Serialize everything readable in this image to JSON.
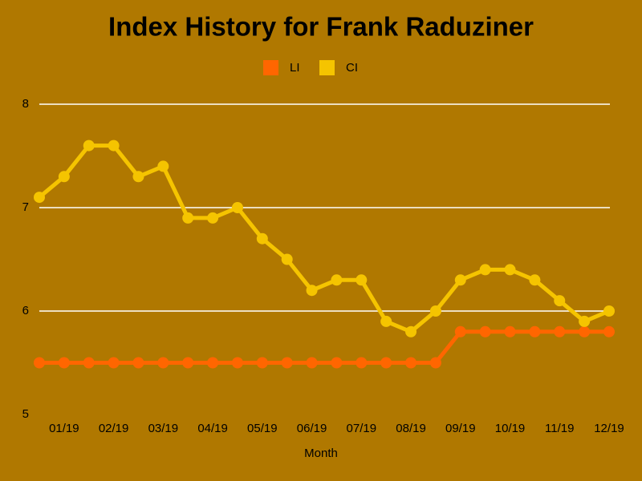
{
  "chart_data": {
    "type": "line",
    "title": "Index History for Frank Raduziner",
    "x_label": "Month",
    "categories": [
      null,
      "01/19",
      null,
      "02/19",
      null,
      "03/19",
      null,
      "04/19",
      null,
      "05/19",
      null,
      "06/19",
      null,
      "07/19",
      null,
      "08/19",
      null,
      "09/19",
      null,
      "10/19",
      null,
      "11/19",
      null,
      "12/19"
    ],
    "series": [
      {
        "name": "LI",
        "color": "#ff6600",
        "values": [
          5.5,
          5.5,
          5.5,
          5.5,
          5.5,
          5.5,
          5.5,
          5.5,
          5.5,
          5.5,
          5.5,
          5.5,
          5.5,
          5.5,
          5.5,
          5.5,
          5.5,
          5.8,
          5.8,
          5.8,
          5.8,
          5.8,
          5.8,
          5.8
        ]
      },
      {
        "name": "CI",
        "color": "#f5c400",
        "values": [
          7.1,
          7.3,
          7.6,
          7.6,
          7.3,
          7.4,
          6.9,
          6.9,
          7.0,
          6.7,
          6.5,
          6.2,
          6.3,
          6.3,
          5.9,
          5.8,
          6.0,
          6.3,
          6.4,
          6.4,
          6.3,
          6.1,
          5.9,
          6.0
        ]
      }
    ],
    "ylim": [
      5,
      8
    ],
    "yticks": [
      5,
      6,
      7,
      8
    ],
    "grid": true
  }
}
